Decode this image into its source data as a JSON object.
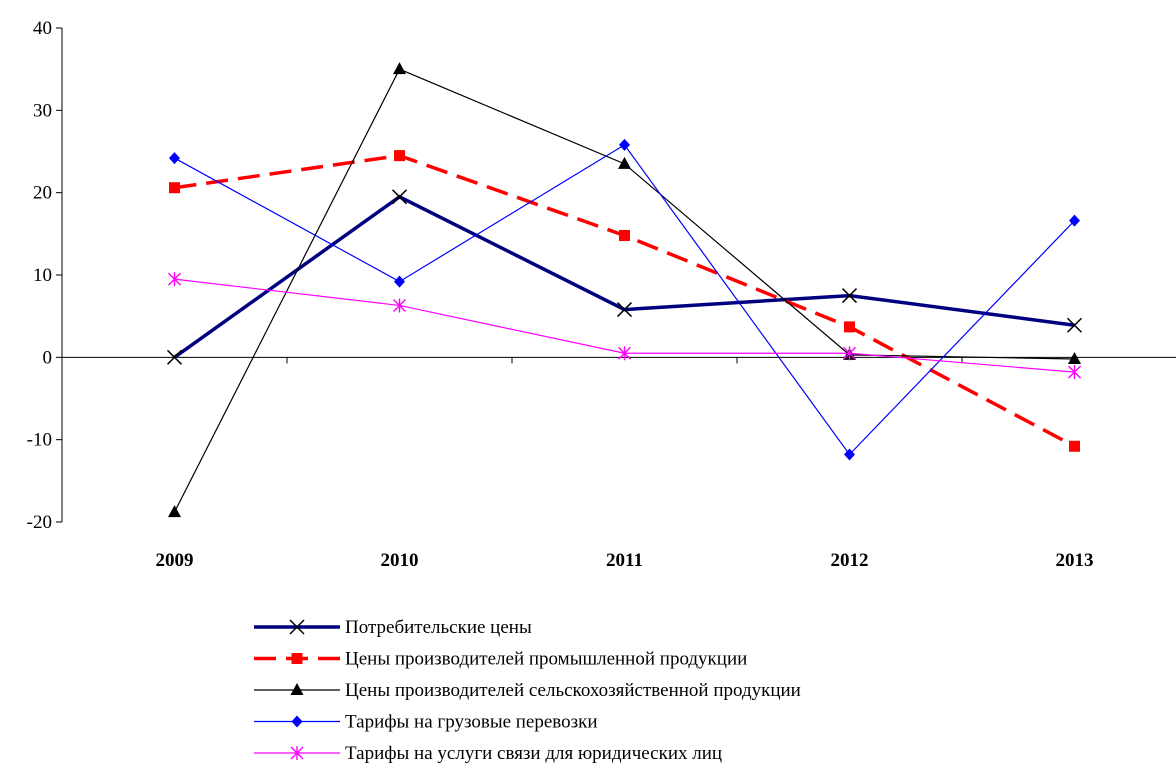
{
  "chart_data": {
    "type": "line",
    "categories": [
      "2009",
      "2010",
      "2011",
      "2012",
      "2013"
    ],
    "ylim": [
      -20,
      40
    ],
    "yticks": [
      -20,
      -10,
      0,
      10,
      20,
      30,
      40
    ],
    "grid": false,
    "legend_position": "bottom",
    "series": [
      {
        "name": "Потребительские цены",
        "values": [
          0,
          19.5,
          5.8,
          7.5,
          3.9
        ],
        "color": "#000080",
        "marker": "x",
        "dash": "solid",
        "weight": "thick"
      },
      {
        "name": "Цены производителей промышленной продукции",
        "values": [
          20.6,
          24.5,
          14.8,
          3.7,
          -10.8
        ],
        "color": "#ff0000",
        "marker": "square",
        "dash": "dashed",
        "weight": "thick"
      },
      {
        "name": "Цены производителей сельскохозяйственной продукции",
        "values": [
          -18.8,
          35.0,
          23.5,
          0.3,
          -0.2
        ],
        "color": "#000000",
        "marker": "triangle",
        "dash": "solid",
        "weight": "thin"
      },
      {
        "name": "Тарифы на грузовые перевозки",
        "values": [
          24.2,
          9.2,
          25.8,
          -11.8,
          16.6
        ],
        "color": "#0000ff",
        "marker": "diamond",
        "dash": "solid",
        "weight": "thin"
      },
      {
        "name": "Тарифы на услуги связи для юридических лиц",
        "values": [
          9.5,
          6.3,
          0.5,
          0.5,
          -1.8
        ],
        "color": "#ff00ff",
        "marker": "asterisk",
        "dash": "solid",
        "weight": "thin"
      }
    ]
  }
}
